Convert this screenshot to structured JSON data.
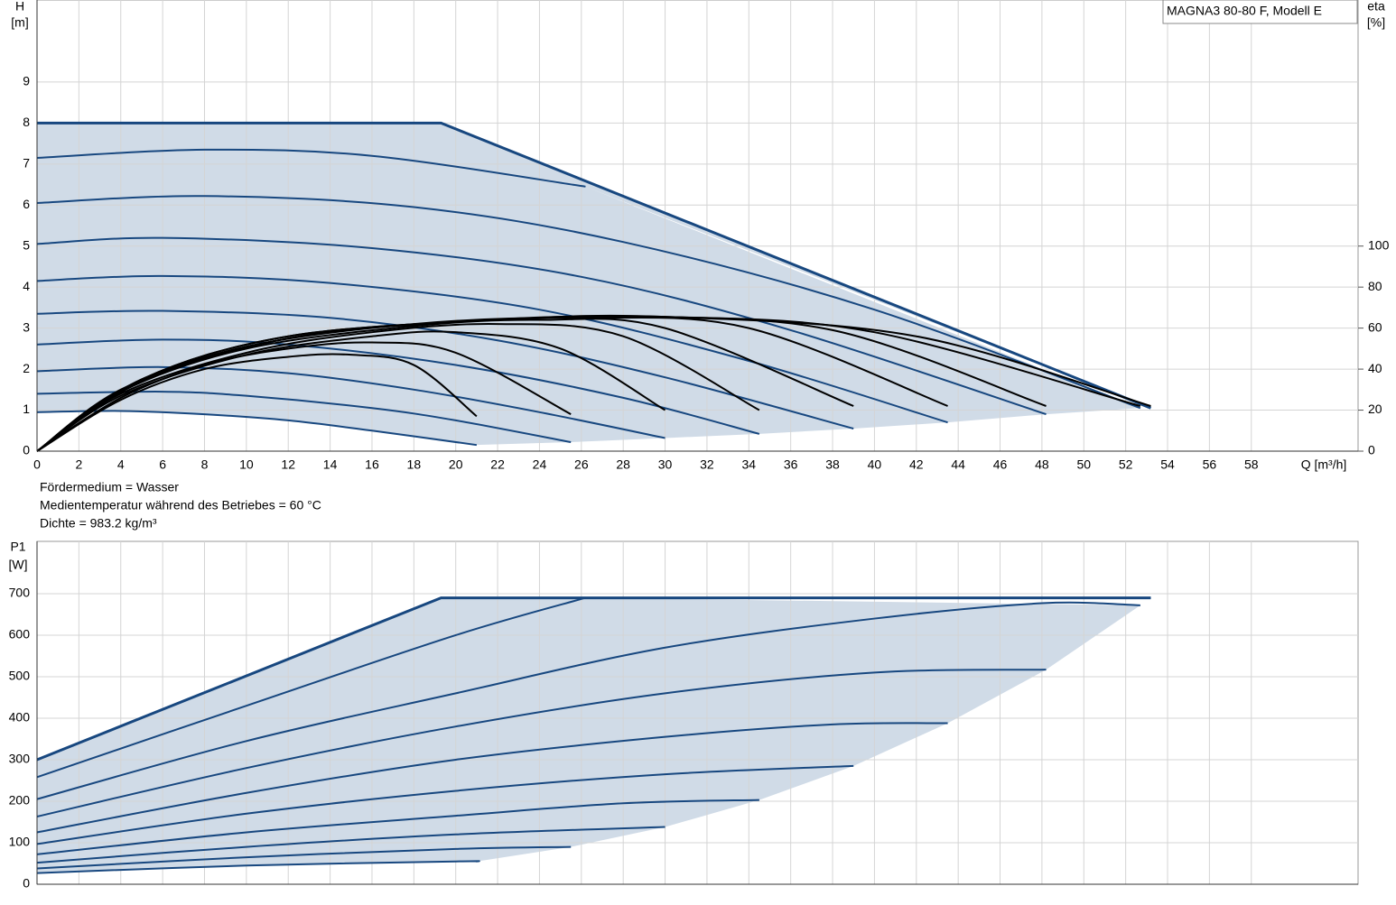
{
  "chart_data": [
    {
      "type": "line",
      "title": "MAGNA3 80-80 F, Modell E",
      "ylabel": "H",
      "yunit": "[m]",
      "y2label": "eta",
      "y2unit": "[%]",
      "xlabel": "Q [m³/h]",
      "notes": [
        "Fördermedium = Wasser",
        "Medientemperatur während des Betriebes = 60 °C",
        "Dichte = 983.2 kg/m³"
      ],
      "xlim": [
        0,
        63.1
      ],
      "xticks": [
        0,
        2,
        4,
        6,
        8,
        10,
        12,
        14,
        16,
        18,
        20,
        22,
        24,
        26,
        28,
        30,
        32,
        34,
        36,
        38,
        40,
        42,
        44,
        46,
        48,
        50,
        52,
        54,
        56,
        58
      ],
      "ylim": [
        0,
        11
      ],
      "yticks": [
        0,
        1,
        2,
        3,
        4,
        5,
        6,
        7,
        8,
        9
      ],
      "y2lim": [
        0,
        220
      ],
      "y2ticks": [
        0,
        20,
        40,
        60,
        80,
        100
      ],
      "grid": true,
      "area_color": "#d0dbe7",
      "series": [
        {
          "color": "#17477f",
          "x": [
            0,
            19.3,
            53.2
          ],
          "values": [
            8,
            8,
            1.05
          ]
        },
        {
          "color": "#17477f",
          "x": [
            0,
            8,
            16,
            26.2
          ],
          "values": [
            7.15,
            7.35,
            7.2,
            6.45
          ]
        },
        {
          "color": "#17477f",
          "x": [
            0,
            8,
            18,
            28,
            40,
            52.7
          ],
          "values": [
            6.05,
            6.22,
            5.95,
            5.1,
            3.45,
            1.05
          ]
        },
        {
          "color": "#17477f",
          "x": [
            0,
            6,
            16,
            26,
            36,
            48.2
          ],
          "values": [
            5.05,
            5.2,
            4.95,
            4.25,
            2.95,
            0.9
          ]
        },
        {
          "color": "#17477f",
          "x": [
            0,
            6,
            14,
            24,
            34,
            43.5
          ],
          "values": [
            4.15,
            4.27,
            4.1,
            3.45,
            2.2,
            0.7
          ]
        },
        {
          "color": "#17477f",
          "x": [
            0,
            6,
            14,
            22,
            30,
            39
          ],
          "values": [
            3.35,
            3.42,
            3.25,
            2.7,
            1.8,
            0.55
          ]
        },
        {
          "color": "#17477f",
          "x": [
            0,
            6,
            12,
            20,
            28,
            34.5
          ],
          "values": [
            2.6,
            2.72,
            2.6,
            2.1,
            1.3,
            0.42
          ]
        },
        {
          "color": "#17477f",
          "x": [
            0,
            6,
            12,
            18,
            24,
            30
          ],
          "values": [
            1.95,
            2.05,
            1.9,
            1.5,
            0.95,
            0.32
          ]
        },
        {
          "color": "#17477f",
          "x": [
            0,
            6,
            10,
            16,
            20,
            25.5
          ],
          "values": [
            1.4,
            1.45,
            1.35,
            1.05,
            0.75,
            0.22
          ]
        },
        {
          "color": "#17477f",
          "x": [
            0,
            4,
            8,
            12,
            16,
            21
          ],
          "values": [
            0.95,
            0.98,
            0.9,
            0.75,
            0.5,
            0.15
          ]
        },
        {
          "color": "#000000",
          "axis": "y2",
          "x": [
            0,
            4,
            8,
            12,
            15,
            18,
            21
          ],
          "values": [
            0,
            25,
            40,
            46,
            47,
            42,
            17
          ]
        },
        {
          "color": "#000000",
          "axis": "y2",
          "x": [
            0,
            4,
            8,
            12,
            16,
            20,
            25.5
          ],
          "values": [
            0,
            26,
            42,
            50,
            53,
            48,
            18
          ]
        },
        {
          "color": "#000000",
          "axis": "y2",
          "x": [
            0,
            4,
            10,
            16,
            20,
            25,
            30
          ],
          "values": [
            0,
            27,
            47,
            56,
            58,
            50,
            20
          ]
        },
        {
          "color": "#000000",
          "axis": "y2",
          "x": [
            0,
            4,
            10,
            16,
            22,
            28,
            34.5
          ],
          "values": [
            0,
            28,
            48,
            58,
            62,
            56,
            20
          ]
        },
        {
          "color": "#000000",
          "axis": "y2",
          "x": [
            0,
            4,
            10,
            18,
            24,
            30,
            39
          ],
          "values": [
            0,
            29,
            50,
            61,
            64,
            60,
            22
          ]
        },
        {
          "color": "#000000",
          "axis": "y2",
          "x": [
            0,
            4,
            10,
            18,
            26,
            34,
            43.5
          ],
          "values": [
            0,
            30,
            51,
            62,
            65,
            60,
            22
          ]
        },
        {
          "color": "#000000",
          "axis": "y2",
          "x": [
            0,
            5,
            12,
            20,
            28,
            38,
            48.2
          ],
          "values": [
            0,
            34,
            55,
            63,
            65.5,
            59,
            22
          ]
        },
        {
          "color": "#000000",
          "axis": "y2",
          "x": [
            0,
            5,
            12,
            22,
            30,
            40,
            52.7
          ],
          "values": [
            0,
            35,
            56,
            64,
            65.5,
            58,
            22
          ]
        },
        {
          "color": "#000000",
          "axis": "y2",
          "x": [
            0,
            5,
            12,
            22,
            30,
            42,
            53.2
          ],
          "values": [
            0,
            35,
            56,
            64,
            65.5,
            56,
            22
          ]
        }
      ]
    },
    {
      "type": "line",
      "ylabel": "P1",
      "yunit": "[W]",
      "xlim": [
        0,
        63.1
      ],
      "ylim": [
        0,
        826
      ],
      "yticks": [
        0,
        100,
        200,
        300,
        400,
        500,
        600,
        700
      ],
      "grid": true,
      "area_color": "#d0dbe7",
      "series": [
        {
          "color": "#17477f",
          "x": [
            0,
            19.3,
            53.2
          ],
          "values": [
            300,
            690,
            690
          ]
        },
        {
          "color": "#17477f",
          "x": [
            0,
            10,
            20,
            26.2
          ],
          "values": [
            258,
            430,
            600,
            690
          ]
        },
        {
          "color": "#17477f",
          "x": [
            0,
            10,
            20,
            30,
            40,
            48,
            52.7
          ],
          "values": [
            205,
            345,
            460,
            570,
            640,
            677,
            672
          ]
        },
        {
          "color": "#17477f",
          "x": [
            0,
            10,
            20,
            30,
            40,
            48.2
          ],
          "values": [
            163,
            280,
            380,
            460,
            510,
            517
          ]
        },
        {
          "color": "#17477f",
          "x": [
            0,
            10,
            20,
            30,
            38,
            43.5
          ],
          "values": [
            125,
            220,
            300,
            355,
            385,
            388
          ]
        },
        {
          "color": "#17477f",
          "x": [
            0,
            10,
            20,
            30,
            39
          ],
          "values": [
            97,
            170,
            225,
            265,
            285
          ]
        },
        {
          "color": "#17477f",
          "x": [
            0,
            10,
            20,
            28,
            34.5
          ],
          "values": [
            72,
            125,
            165,
            195,
            203
          ]
        },
        {
          "color": "#17477f",
          "x": [
            0,
            10,
            20,
            30
          ],
          "values": [
            52,
            90,
            120,
            138
          ]
        },
        {
          "color": "#17477f",
          "x": [
            0,
            10,
            20,
            25.5
          ],
          "values": [
            38,
            65,
            85,
            90
          ]
        },
        {
          "color": "#17477f",
          "x": [
            0,
            10,
            20,
            21
          ],
          "values": [
            27,
            45,
            55,
            55
          ]
        }
      ]
    }
  ]
}
